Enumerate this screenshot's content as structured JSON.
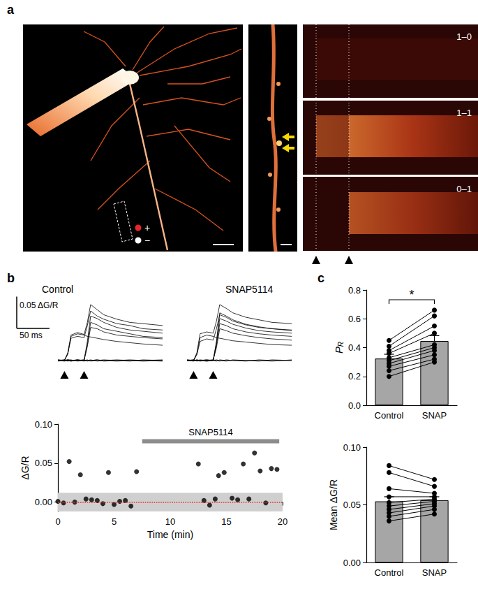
{
  "panel_labels": [
    "a",
    "b",
    "c"
  ],
  "images": {
    "stimulus_legend": [
      {
        "label": "+",
        "color": "#e8262a"
      },
      {
        "label": "−",
        "color": "#ffffff"
      }
    ],
    "linescan_labels": [
      "1–0",
      "1–1",
      "0–1"
    ]
  },
  "chart_data": [
    {
      "type": "line",
      "title": "Control",
      "color": "#000000",
      "line_style": "solid",
      "tick_labels": false,
      "xlim": [
        -10,
        150
      ],
      "ylim": [
        -0.01,
        0.1
      ],
      "stimuli": [
        0,
        30
      ],
      "scale_bar": {
        "x": 50,
        "x_label": "50 ms",
        "y": 0.05,
        "y_label": "0.05 ΔG/R"
      },
      "x": [
        -10,
        0,
        5,
        10,
        20,
        30,
        35,
        40,
        50,
        60,
        80,
        100,
        120,
        150
      ],
      "series": [
        {
          "values": [
            0,
            0.001,
            0,
            -0.001,
            0.001,
            0,
            0.001,
            -0.001,
            0,
            0.001,
            0,
            -0.001,
            0.001,
            0
          ]
        },
        {
          "values": [
            0.001,
            0,
            -0.001,
            0,
            0,
            0.001,
            -0.001,
            0,
            0.001,
            0,
            -0.001,
            0,
            0,
            0.001
          ]
        },
        {
          "values": [
            -0.001,
            0,
            0.001,
            0.001,
            -0.001,
            0,
            0,
            0.001,
            -0.001,
            0,
            0.001,
            0,
            -0.001,
            0
          ]
        },
        {
          "values": [
            0,
            -0.001,
            0,
            0,
            0.001,
            -0.001,
            0,
            0,
            0.001,
            -0.001,
            0,
            0.001,
            0,
            -0.001
          ]
        },
        {
          "values": [
            0,
            0,
            0.01,
            0.038,
            0.042,
            0.04,
            0.038,
            0.037,
            0.035,
            0.033,
            0.03,
            0.028,
            0.026,
            0.024
          ]
        },
        {
          "values": [
            0,
            0,
            0.012,
            0.04,
            0.044,
            0.041,
            0.06,
            0.088,
            0.08,
            0.072,
            0.065,
            0.06,
            0.058,
            0.055
          ]
        },
        {
          "values": [
            0,
            0.001,
            0.01,
            0.035,
            0.038,
            0.036,
            0.055,
            0.078,
            0.07,
            0.065,
            0.058,
            0.055,
            0.05,
            0.048
          ]
        },
        {
          "values": [
            0,
            0,
            0.001,
            0,
            0,
            0.001,
            0.03,
            0.07,
            0.066,
            0.06,
            0.052,
            0.048,
            0.046,
            0.043
          ]
        },
        {
          "values": [
            0.001,
            0,
            0,
            -0.001,
            0,
            0,
            0.025,
            0.06,
            0.056,
            0.05,
            0.046,
            0.042,
            0.038,
            0.036
          ]
        },
        {
          "values": [
            0,
            0,
            0.001,
            0,
            0.001,
            0,
            0.022,
            0.052,
            0.05,
            0.045,
            0.04,
            0.038,
            0.036,
            0.034
          ]
        }
      ]
    },
    {
      "type": "line",
      "title": "SNAP5114",
      "color": "#000000",
      "line_style": "solid",
      "tick_labels": false,
      "xlim": [
        -10,
        150
      ],
      "ylim": [
        -0.01,
        0.1
      ],
      "stimuli": [
        0,
        30
      ],
      "x": [
        -10,
        0,
        5,
        10,
        20,
        30,
        35,
        40,
        50,
        60,
        80,
        100,
        120,
        150
      ],
      "series": [
        {
          "values": [
            0,
            0.001,
            -0.001,
            0,
            0.001,
            0,
            -0.001,
            0.001,
            0,
            0,
            -0.001,
            0.001,
            0,
            0
          ]
        },
        {
          "values": [
            0.001,
            0,
            0,
            -0.001,
            0,
            0.001,
            0,
            -0.001,
            0.001,
            0,
            0,
            -0.001,
            0.001,
            0
          ]
        },
        {
          "values": [
            0,
            -0.001,
            0.001,
            0,
            -0.001,
            0,
            0.001,
            0,
            -0.001,
            0.001,
            0,
            0,
            -0.001,
            0.001
          ]
        },
        {
          "values": [
            0,
            0,
            0.01,
            0.036,
            0.04,
            0.038,
            0.036,
            0.035,
            0.033,
            0.031,
            0.029,
            0.027,
            0.025,
            0.024
          ]
        },
        {
          "values": [
            0,
            0,
            0.012,
            0.042,
            0.045,
            0.043,
            0.062,
            0.088,
            0.082,
            0.075,
            0.068,
            0.064,
            0.06,
            0.058
          ]
        },
        {
          "values": [
            0,
            0,
            0.009,
            0.03,
            0.034,
            0.032,
            0.05,
            0.072,
            0.068,
            0.062,
            0.056,
            0.052,
            0.05,
            0.047
          ]
        },
        {
          "values": [
            0,
            0.001,
            0,
            0,
            0.001,
            0,
            0.03,
            0.075,
            0.07,
            0.064,
            0.057,
            0.053,
            0.05,
            0.048
          ]
        },
        {
          "values": [
            0,
            0,
            0,
            0.001,
            0,
            0,
            0.028,
            0.066,
            0.062,
            0.057,
            0.051,
            0.047,
            0.045,
            0.043
          ]
        },
        {
          "values": [
            0.001,
            0,
            0,
            0,
            -0.001,
            0,
            0.024,
            0.058,
            0.055,
            0.05,
            0.045,
            0.042,
            0.04,
            0.038
          ]
        },
        {
          "values": [
            0,
            0,
            0.001,
            0,
            0,
            0.001,
            0.02,
            0.05,
            0.047,
            0.043,
            0.039,
            0.036,
            0.034,
            0.032
          ]
        }
      ]
    },
    {
      "type": "scatter",
      "color": "#000000",
      "marker": "circle",
      "x_label": "Time (min)",
      "y_label": "ΔG/R",
      "xlim": [
        0,
        20
      ],
      "xticks": [
        0,
        5,
        10,
        15,
        20
      ],
      "ylim": [
        -0.012,
        0.1
      ],
      "yticks": [
        {
          "value": 0,
          "label": "0.00"
        },
        {
          "value": 0.05,
          "label": "0.05"
        },
        {
          "value": 0.1,
          "label": "0.10"
        }
      ],
      "x": [
        0,
        0.5,
        1,
        1.5,
        2,
        2.5,
        3,
        3.5,
        4,
        4.5,
        5,
        5.5,
        6,
        6.5,
        7,
        12.5,
        13,
        13.5,
        14,
        14.3,
        14.8,
        15.5,
        16,
        16.5,
        17,
        17.5,
        18,
        18.5,
        19,
        19.5
      ],
      "values": [
        0.001,
        -0.001,
        0.052,
        0,
        0.035,
        0.004,
        0.003,
        0.002,
        -0.002,
        0.038,
        -0.003,
        0.001,
        0.002,
        -0.005,
        0.039,
        0.049,
        0.002,
        -0.004,
        0.004,
        0.034,
        0.038,
        0.005,
        0.003,
        0.049,
        0.004,
        0.063,
        0.04,
        -0.001,
        0.043,
        0.042
      ],
      "band": {
        "range": [
          -0.012,
          0.012
        ],
        "color": "#cfcfcf"
      },
      "reference_line": {
        "value": 0,
        "color": "#e8302a",
        "line_style": "dotted"
      },
      "treatment": {
        "label": "SNAP5114",
        "start": 7.5,
        "end": 19.7,
        "level": 0.078,
        "color": "#8c8c8c"
      }
    },
    {
      "type": "bar",
      "y_label": "PR",
      "color": "#a6a6a6",
      "categories": [
        "Control",
        "SNAP"
      ],
      "values": [
        0.324,
        0.446
      ],
      "errors": [
        0.03,
        0.037
      ],
      "paired_values": [
        [
          0.45,
          0.41,
          0.38,
          0.36,
          0.33,
          0.31,
          0.29,
          0.27,
          0.24,
          0.2
        ],
        [
          0.66,
          0.62,
          0.55,
          0.5,
          0.42,
          0.4,
          0.38,
          0.35,
          0.32,
          0.3
        ]
      ],
      "significance": "*",
      "ylim": [
        0,
        0.8
      ],
      "yticks": [
        {
          "value": 0,
          "label": "0.0"
        },
        {
          "value": 0.2,
          "label": "0.2"
        },
        {
          "value": 0.4,
          "label": "0.4"
        },
        {
          "value": 0.6,
          "label": "0.6"
        },
        {
          "value": 0.8,
          "label": "0.8"
        }
      ]
    },
    {
      "type": "bar",
      "y_label": "Mean ΔG/R",
      "color": "#a6a6a6",
      "categories": [
        "Control",
        "SNAP"
      ],
      "values": [
        0.053,
        0.054
      ],
      "errors": [
        0.004,
        0.003
      ],
      "paired_values": [
        [
          0.084,
          0.078,
          0.064,
          0.057,
          0.052,
          0.049,
          0.046,
          0.043,
          0.04,
          0.036
        ],
        [
          0.072,
          0.066,
          0.06,
          0.057,
          0.055,
          0.053,
          0.051,
          0.049,
          0.046,
          0.042
        ]
      ],
      "ylim": [
        0,
        0.1
      ],
      "yticks": [
        {
          "value": 0,
          "label": "0.00"
        },
        {
          "value": 0.05,
          "label": "0.05"
        },
        {
          "value": 0.1,
          "label": "0.10"
        }
      ]
    }
  ]
}
